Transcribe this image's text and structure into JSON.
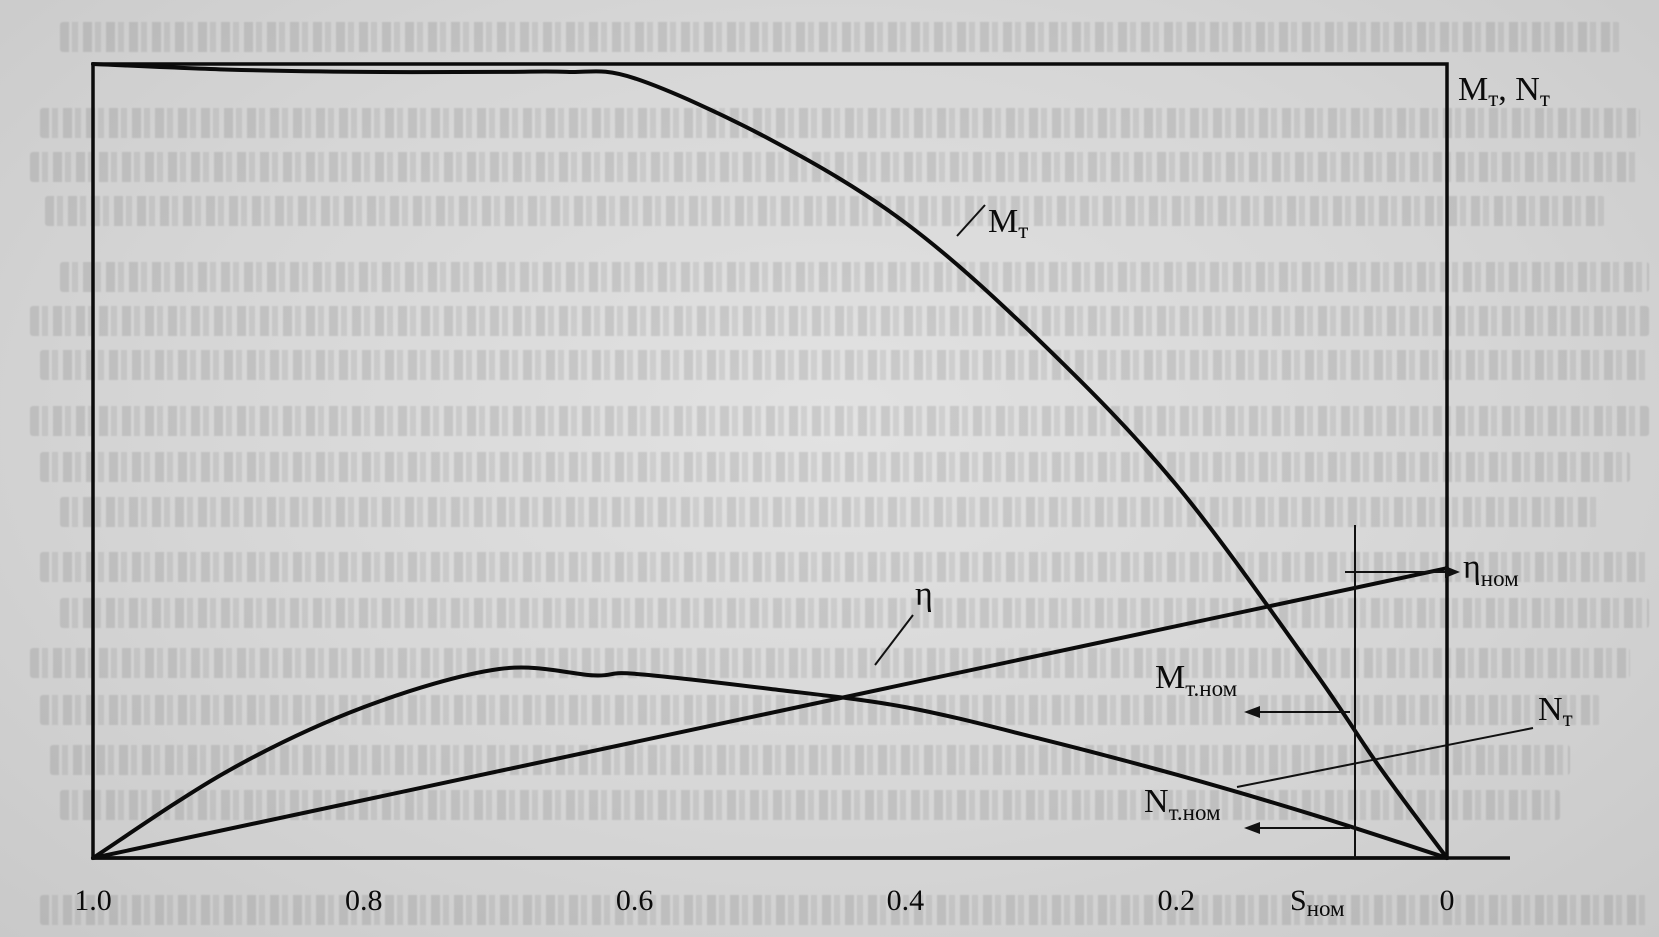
{
  "chart_data": {
    "type": "line",
    "axis_label_right": {
      "main": "M",
      "sub1": "т",
      "sep": ", N",
      "sub2": "т"
    },
    "x_ticks": [
      "1.0",
      "0.8",
      "0.6",
      "0.4",
      "0.2",
      "0"
    ],
    "x_tick_values": [
      1.0,
      0.8,
      0.6,
      0.4,
      0.2,
      0.0
    ],
    "s_nom_label": {
      "main": "S",
      "sub": "ном"
    },
    "s_nom_value": 0.068,
    "xlim": [
      1.0,
      0.0
    ],
    "ylim": [
      0,
      1.0
    ],
    "series": [
      {
        "key": "mt",
        "label_main": "M",
        "label_sub": "т",
        "x": [
          1.0,
          0.9,
          0.8,
          0.7,
          0.65,
          0.6,
          0.5,
          0.4,
          0.3,
          0.2,
          0.1,
          0.05,
          0.0
        ],
        "y": [
          1.0,
          0.993,
          0.99,
          0.99,
          0.99,
          0.982,
          0.905,
          0.8,
          0.65,
          0.47,
          0.24,
          0.115,
          0.0
        ]
      },
      {
        "key": "nt",
        "label_main": "N",
        "label_sub": "т",
        "x": [
          1.0,
          0.9,
          0.8,
          0.7,
          0.63,
          0.6,
          0.5,
          0.4,
          0.3,
          0.2,
          0.1,
          0.0
        ],
        "y": [
          0.0,
          0.11,
          0.19,
          0.238,
          0.23,
          0.232,
          0.213,
          0.19,
          0.15,
          0.105,
          0.055,
          0.0
        ]
      },
      {
        "key": "eta",
        "label_main": "η",
        "label_sub": "",
        "x": [
          1.0,
          0.0
        ],
        "y": [
          0.0,
          0.365
        ]
      }
    ],
    "markers": [
      {
        "label_main": "η",
        "label_sub": "ном"
      },
      {
        "label_main": "M",
        "label_sub": "т.ном"
      },
      {
        "label_main": "N",
        "label_sub": "т.ном"
      }
    ]
  }
}
